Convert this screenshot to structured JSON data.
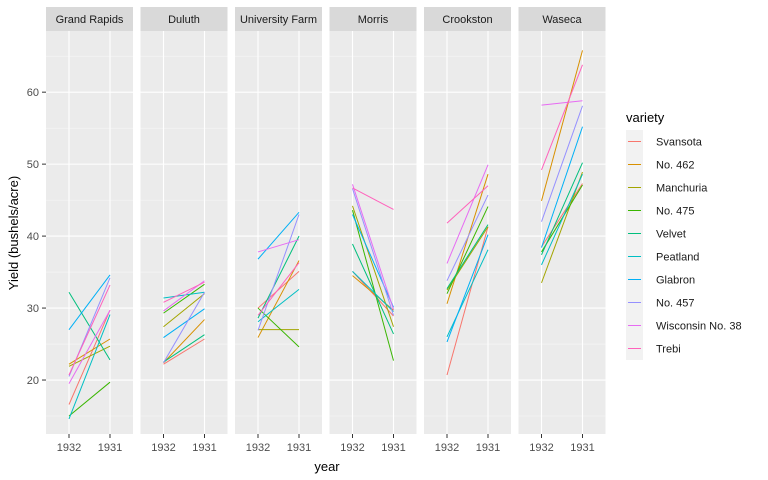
{
  "chart_data": {
    "type": "line",
    "xlabel": "year",
    "ylabel": "Yield (bushels/acre)",
    "x_categories": [
      "1932",
      "1931"
    ],
    "yticks": [
      20,
      30,
      40,
      50,
      60
    ],
    "ylim": [
      12.5,
      68.5
    ],
    "grid": true,
    "legend_position": "right",
    "legend_title": "variety",
    "panels": [
      {
        "site": "Grand Rapids",
        "series": [
          {
            "variety": "Svansota",
            "values": [
              16.6,
              29.7
            ]
          },
          {
            "variety": "No. 462",
            "values": [
              22.2,
              25.7
            ]
          },
          {
            "variety": "Manchuria",
            "values": [
              21.9,
              24.7
            ]
          },
          {
            "variety": "No. 475",
            "values": [
              15.0,
              19.7
            ]
          },
          {
            "variety": "Velvet",
            "values": [
              32.2,
              22.8
            ]
          },
          {
            "variety": "Peatland",
            "values": [
              14.6,
              29.1
            ]
          },
          {
            "variety": "Glabron",
            "values": [
              27.0,
              34.6
            ]
          },
          {
            "variety": "No. 457",
            "values": [
              20.5,
              34.2
            ]
          },
          {
            "variety": "Wisconsin No. 38",
            "values": [
              19.5,
              29.7
            ]
          },
          {
            "variety": "Trebi",
            "values": [
              20.7,
              33.2
            ]
          }
        ]
      },
      {
        "site": "Duluth",
        "series": [
          {
            "variety": "Svansota",
            "values": [
              22.2,
              25.7
            ]
          },
          {
            "variety": "No. 462",
            "values": [
              22.4,
              28.4
            ]
          },
          {
            "variety": "Manchuria",
            "values": [
              27.4,
              32.0
            ]
          },
          {
            "variety": "No. 475",
            "values": [
              29.3,
              33.3
            ]
          },
          {
            "variety": "Velvet",
            "values": [
              22.5,
              26.3
            ]
          },
          {
            "variety": "Peatland",
            "values": [
              31.4,
              32.2
            ]
          },
          {
            "variety": "Glabron",
            "values": [
              25.9,
              29.9
            ]
          },
          {
            "variety": "No. 457",
            "values": [
              22.4,
              32.2
            ]
          },
          {
            "variety": "Wisconsin No. 38",
            "values": [
              29.6,
              33.8
            ]
          },
          {
            "variety": "Trebi",
            "values": [
              30.8,
              33.6
            ]
          }
        ]
      },
      {
        "site": "University Farm",
        "series": [
          {
            "variety": "Svansota",
            "values": [
              30.0,
              35.1
            ]
          },
          {
            "variety": "No. 462",
            "values": [
              25.9,
              36.6
            ]
          },
          {
            "variety": "Manchuria",
            "values": [
              27.0,
              27.0
            ]
          },
          {
            "variety": "No. 475",
            "values": [
              30.0,
              24.6
            ]
          },
          {
            "variety": "Velvet",
            "values": [
              28.6,
              40.0
            ]
          },
          {
            "variety": "Peatland",
            "values": [
              28.1,
              32.6
            ]
          },
          {
            "variety": "Glabron",
            "values": [
              36.8,
              43.3
            ]
          },
          {
            "variety": "No. 457",
            "values": [
              26.9,
              43.0
            ]
          },
          {
            "variety": "Wisconsin No. 38",
            "values": [
              37.8,
              39.5
            ]
          },
          {
            "variety": "Trebi",
            "values": [
              29.0,
              36.3
            ]
          }
        ]
      },
      {
        "site": "Morris",
        "series": [
          {
            "variety": "Svansota",
            "values": [
              35.1,
              28.9
            ]
          },
          {
            "variety": "No. 462",
            "values": [
              34.5,
              29.7
            ]
          },
          {
            "variety": "Manchuria",
            "values": [
              44.2,
              27.4
            ]
          },
          {
            "variety": "No. 475",
            "values": [
              43.6,
              22.7
            ]
          },
          {
            "variety": "Velvet",
            "values": [
              38.9,
              26.4
            ]
          },
          {
            "variety": "Peatland",
            "values": [
              35.1,
              29.5
            ]
          },
          {
            "variety": "Glabron",
            "values": [
              43.0,
              30.1
            ]
          },
          {
            "variety": "No. 457",
            "values": [
              46.6,
              29.0
            ]
          },
          {
            "variety": "Wisconsin No. 38",
            "values": [
              47.2,
              29.8
            ]
          },
          {
            "variety": "Trebi",
            "values": [
              46.7,
              43.7
            ]
          }
        ]
      },
      {
        "site": "Crookston",
        "series": [
          {
            "variety": "Svansota",
            "values": [
              20.7,
              41.3
            ]
          },
          {
            "variety": "No. 462",
            "values": [
              30.6,
              48.6
            ]
          },
          {
            "variety": "Manchuria",
            "values": [
              32.5,
              41.3
            ]
          },
          {
            "variety": "No. 475",
            "values": [
              32.0,
              44.1
            ]
          },
          {
            "variety": "Velvet",
            "values": [
              32.7,
              41.6
            ]
          },
          {
            "variety": "Peatland",
            "values": [
              26.0,
              38.1
            ]
          },
          {
            "variety": "Glabron",
            "values": [
              25.3,
              40.2
            ]
          },
          {
            "variety": "No. 457",
            "values": [
              33.8,
              45.7
            ]
          },
          {
            "variety": "Wisconsin No. 38",
            "values": [
              36.2,
              49.9
            ]
          },
          {
            "variety": "Trebi",
            "values": [
              41.8,
              47.0
            ]
          }
        ]
      },
      {
        "site": "Waseca",
        "series": [
          {
            "variety": "Svansota",
            "values": [
              38.5,
              47.3
            ]
          },
          {
            "variety": "No. 462",
            "values": [
              44.9,
              65.8
            ]
          },
          {
            "variety": "Manchuria",
            "values": [
              33.5,
              48.9
            ]
          },
          {
            "variety": "No. 475",
            "values": [
              37.8,
              47.1
            ]
          },
          {
            "variety": "Velvet",
            "values": [
              37.4,
              50.2
            ]
          },
          {
            "variety": "Peatland",
            "values": [
              36.0,
              48.6
            ]
          },
          {
            "variety": "Glabron",
            "values": [
              38.4,
              55.2
            ]
          },
          {
            "variety": "No. 457",
            "values": [
              42.0,
              58.1
            ]
          },
          {
            "variety": "Wisconsin No. 38",
            "values": [
              58.2,
              58.8
            ]
          },
          {
            "variety": "Trebi",
            "values": [
              49.2,
              63.8
            ]
          }
        ]
      }
    ],
    "legend": [
      {
        "variety": "Svansota",
        "color": "#F8766D"
      },
      {
        "variety": "No. 462",
        "color": "#D89000"
      },
      {
        "variety": "Manchuria",
        "color": "#A3A500"
      },
      {
        "variety": "No. 475",
        "color": "#39B600"
      },
      {
        "variety": "Velvet",
        "color": "#00BF7D"
      },
      {
        "variety": "Peatland",
        "color": "#00BFC4"
      },
      {
        "variety": "Glabron",
        "color": "#00B0F6"
      },
      {
        "variety": "No. 457",
        "color": "#9590FF"
      },
      {
        "variety": "Wisconsin No. 38",
        "color": "#E76BF3"
      },
      {
        "variety": "Trebi",
        "color": "#FF62BC"
      }
    ]
  }
}
